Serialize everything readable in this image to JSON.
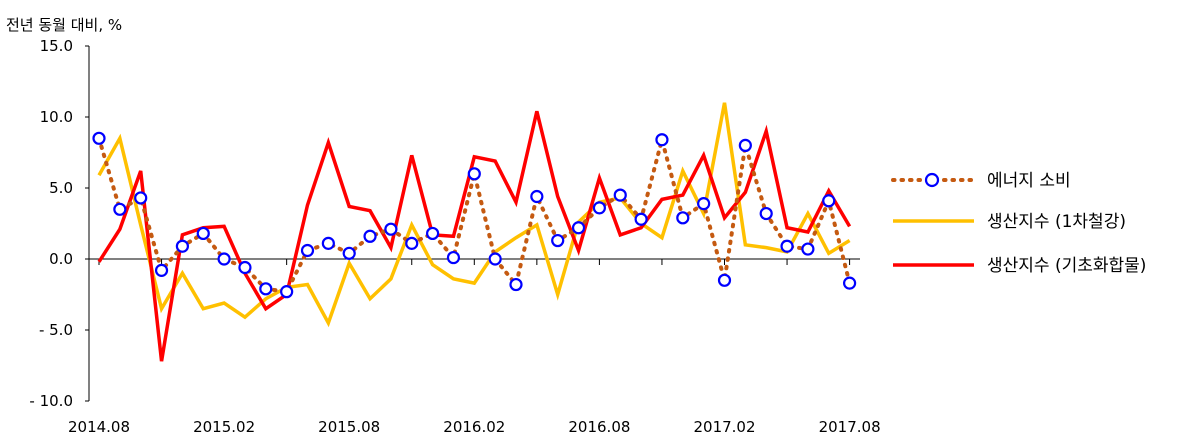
{
  "chart_data": {
    "type": "line",
    "unit_label": "전년 동월 대비, %",
    "ylim": [
      -10,
      15
    ],
    "y_ticks": [
      "15.0",
      "10.0",
      "5.0",
      "0.0",
      "- 5.0",
      "- 10.0"
    ],
    "y_tick_values": [
      15,
      10,
      5,
      0,
      -5,
      -10
    ],
    "x_tick_labels": [
      "2014.08",
      "2015.02",
      "2015.08",
      "2016.02",
      "2016.08",
      "2017.02",
      "2017.08"
    ],
    "x_tick_index": [
      0,
      6,
      12,
      18,
      24,
      30,
      36
    ],
    "x": [
      "2014.08",
      "2014.09",
      "2014.10",
      "2014.11",
      "2014.12",
      "2015.01",
      "2015.02",
      "2015.03",
      "2015.04",
      "2015.05",
      "2015.06",
      "2015.07",
      "2015.08",
      "2015.09",
      "2015.10",
      "2015.11",
      "2015.12",
      "2016.01",
      "2016.02",
      "2016.03",
      "2016.04",
      "2016.05",
      "2016.06",
      "2016.07",
      "2016.08",
      "2016.09",
      "2016.10",
      "2016.11",
      "2016.12",
      "2017.01",
      "2017.02",
      "2017.03",
      "2017.04",
      "2017.05",
      "2017.06",
      "2017.07",
      "2017.08"
    ],
    "grid": false,
    "legend_position": "right",
    "series": [
      {
        "name": "에너지 소비",
        "style": "dotted-markers",
        "color": "#c55a11",
        "marker_color": "#0000ff",
        "values": [
          8.5,
          3.5,
          4.3,
          -0.8,
          0.9,
          1.8,
          0.0,
          -0.6,
          -2.1,
          -2.3,
          0.6,
          1.1,
          0.4,
          1.6,
          2.1,
          1.1,
          1.8,
          0.1,
          6.0,
          0.0,
          -1.8,
          4.4,
          1.3,
          2.2,
          3.6,
          4.5,
          2.8,
          8.4,
          2.9,
          3.9,
          -1.5,
          8.0,
          3.2,
          0.9,
          0.7,
          4.1,
          -1.7
        ]
      },
      {
        "name": "생산지수 (1차철강)",
        "style": "line",
        "color": "#ffc000",
        "values": [
          5.9,
          8.5,
          2.4,
          -3.5,
          -1.0,
          -3.5,
          -3.1,
          -4.1,
          -2.8,
          -2.0,
          -1.8,
          -4.5,
          -0.3,
          -2.8,
          -1.4,
          2.4,
          -0.4,
          -1.4,
          -1.7,
          0.5,
          1.5,
          2.4,
          -2.5,
          2.6,
          4.0,
          4.3,
          2.5,
          1.5,
          6.2,
          3.2,
          11.0,
          1.0,
          0.8,
          0.5,
          3.2,
          0.4,
          1.3
        ]
      },
      {
        "name": "생산지수 (기초화합물)",
        "style": "line",
        "color": "#ff0000",
        "values": [
          -0.2,
          2.1,
          6.2,
          -7.2,
          1.7,
          2.2,
          2.3,
          -1.0,
          -3.5,
          -2.5,
          3.8,
          8.2,
          3.7,
          3.4,
          0.8,
          7.3,
          1.7,
          1.6,
          7.2,
          6.9,
          4.0,
          10.4,
          4.4,
          0.6,
          5.7,
          1.7,
          2.2,
          4.2,
          4.5,
          7.3,
          2.9,
          4.7,
          9.0,
          2.2,
          1.9,
          4.8,
          2.3
        ]
      }
    ]
  }
}
